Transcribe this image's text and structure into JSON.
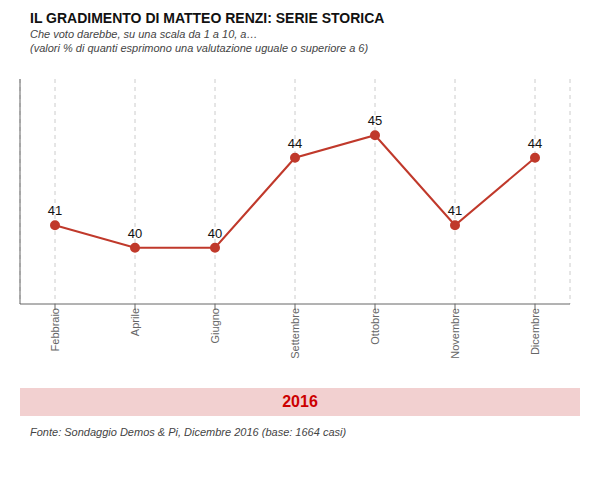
{
  "chart_data": {
    "type": "line",
    "title": "IL GRADIMENTO DI MATTEO RENZI: SERIE STORICA",
    "subtitle": [
      "Che voto darebbe, su una scala da 1 a 10, a…",
      "(valori % di quanti esprimono una valutazione uguale o superiore a 6)"
    ],
    "annotations": [
      "2016"
    ],
    "footnote": "Fonte: Sondaggio Demos & Pi, Dicembre 2016 (base: 1664 casi)",
    "categories": [
      "Febbraio",
      "Aprile",
      "Giugno",
      "Settembre",
      "Ottobre",
      "Novembre",
      "Dicembre"
    ],
    "values": [
      41,
      40,
      40,
      44,
      45,
      41,
      44
    ],
    "color": "#c0392b",
    "ylim": [
      37.5,
      47.5
    ],
    "grid": "x",
    "data_labels": true,
    "tick_labels": "x",
    "marker": "circle"
  }
}
